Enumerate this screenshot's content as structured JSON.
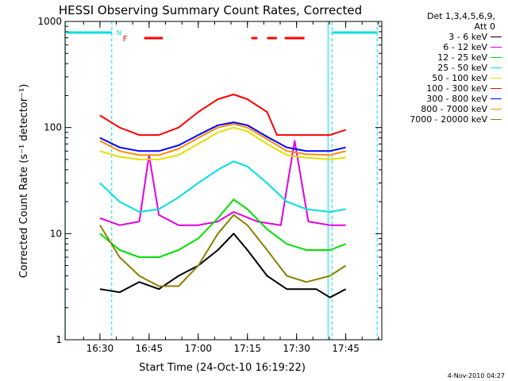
{
  "chart_data": {
    "type": "line",
    "title": "HESSI Observing Summary Count Rates, Corrected",
    "xlabel": "Start Time (24-Oct-10 16:19:22)",
    "ylabel": "Corrected Count Rate (s⁻¹ detector⁻¹)",
    "yscale": "log",
    "ylim": [
      1,
      1000
    ],
    "xlim": [
      "16:19:22",
      "17:56:00"
    ],
    "x_ticks": [
      "16:30",
      "16:45",
      "17:00",
      "17:15",
      "17:30",
      "17:45"
    ],
    "y_ticks": [
      "1",
      "10",
      "100",
      "1000"
    ],
    "legend_header": [
      "Det 1,3,4,5,6,9,",
      "Att 0"
    ],
    "legend_position": "right",
    "series": [
      {
        "name": "3 - 6 keV",
        "color": "#000000",
        "points": [
          [
            16.5,
            3
          ],
          [
            16.6,
            2.8
          ],
          [
            16.7,
            3.5
          ],
          [
            16.8,
            3
          ],
          [
            16.9,
            4
          ],
          [
            17.0,
            5
          ],
          [
            17.1,
            7
          ],
          [
            17.18,
            10
          ],
          [
            17.25,
            7
          ],
          [
            17.35,
            4
          ],
          [
            17.45,
            3
          ],
          [
            17.55,
            3
          ],
          [
            17.6,
            3
          ],
          [
            17.67,
            2.5
          ],
          [
            17.75,
            3
          ]
        ]
      },
      {
        "name": "6 - 12 keV",
        "color": "#e000e0",
        "points": [
          [
            16.5,
            14
          ],
          [
            16.6,
            12
          ],
          [
            16.7,
            13
          ],
          [
            16.75,
            55
          ],
          [
            16.8,
            15
          ],
          [
            16.9,
            12
          ],
          [
            17.0,
            12
          ],
          [
            17.1,
            13
          ],
          [
            17.18,
            16
          ],
          [
            17.3,
            13
          ],
          [
            17.42,
            12
          ],
          [
            17.49,
            75
          ],
          [
            17.56,
            13
          ],
          [
            17.67,
            12
          ],
          [
            17.75,
            12
          ]
        ]
      },
      {
        "name": "12 - 25 keV",
        "color": "#00e000",
        "points": [
          [
            16.5,
            10
          ],
          [
            16.6,
            7
          ],
          [
            16.7,
            6
          ],
          [
            16.8,
            6
          ],
          [
            16.9,
            7
          ],
          [
            17.0,
            9
          ],
          [
            17.1,
            14
          ],
          [
            17.18,
            21
          ],
          [
            17.25,
            17
          ],
          [
            17.35,
            11
          ],
          [
            17.45,
            8
          ],
          [
            17.55,
            7
          ],
          [
            17.67,
            7
          ],
          [
            17.75,
            8
          ]
        ]
      },
      {
        "name": "25 - 50 keV",
        "color": "#00e0e0",
        "points": [
          [
            16.5,
            30
          ],
          [
            16.6,
            20
          ],
          [
            16.7,
            16
          ],
          [
            16.8,
            17
          ],
          [
            16.9,
            22
          ],
          [
            17.0,
            30
          ],
          [
            17.1,
            40
          ],
          [
            17.18,
            48
          ],
          [
            17.25,
            43
          ],
          [
            17.35,
            30
          ],
          [
            17.45,
            20
          ],
          [
            17.55,
            17
          ],
          [
            17.67,
            16
          ],
          [
            17.75,
            17
          ]
        ]
      },
      {
        "name": "50 - 100 keV",
        "color": "#e0e000",
        "points": [
          [
            16.5,
            60
          ],
          [
            16.6,
            53
          ],
          [
            16.7,
            50
          ],
          [
            16.8,
            50
          ],
          [
            16.9,
            55
          ],
          [
            17.0,
            70
          ],
          [
            17.1,
            90
          ],
          [
            17.18,
            100
          ],
          [
            17.25,
            92
          ],
          [
            17.35,
            70
          ],
          [
            17.45,
            55
          ],
          [
            17.55,
            52
          ],
          [
            17.67,
            50
          ],
          [
            17.75,
            52
          ]
        ]
      },
      {
        "name": "100 - 300 keV",
        "color": "#ff0000",
        "points": [
          [
            16.5,
            130
          ],
          [
            16.6,
            100
          ],
          [
            16.7,
            85
          ],
          [
            16.8,
            85
          ],
          [
            16.9,
            100
          ],
          [
            17.0,
            140
          ],
          [
            17.1,
            185
          ],
          [
            17.18,
            205
          ],
          [
            17.25,
            185
          ],
          [
            17.35,
            140
          ],
          [
            17.4,
            85
          ],
          [
            17.5,
            85
          ],
          [
            17.6,
            85
          ],
          [
            17.67,
            85
          ],
          [
            17.75,
            95
          ]
        ]
      },
      {
        "name": "300 - 800 keV",
        "color": "#0000ff",
        "points": [
          [
            16.5,
            80
          ],
          [
            16.6,
            65
          ],
          [
            16.7,
            60
          ],
          [
            16.8,
            60
          ],
          [
            16.9,
            68
          ],
          [
            17.0,
            85
          ],
          [
            17.1,
            105
          ],
          [
            17.18,
            112
          ],
          [
            17.25,
            105
          ],
          [
            17.35,
            82
          ],
          [
            17.45,
            65
          ],
          [
            17.55,
            60
          ],
          [
            17.67,
            60
          ],
          [
            17.75,
            65
          ]
        ]
      },
      {
        "name": "800 - 7000 keV",
        "color": "#ff8c00",
        "points": [
          [
            16.5,
            75
          ],
          [
            16.6,
            60
          ],
          [
            16.7,
            55
          ],
          [
            16.8,
            55
          ],
          [
            16.9,
            63
          ],
          [
            17.0,
            80
          ],
          [
            17.1,
            100
          ],
          [
            17.18,
            108
          ],
          [
            17.25,
            100
          ],
          [
            17.35,
            78
          ],
          [
            17.45,
            60
          ],
          [
            17.55,
            56
          ],
          [
            17.67,
            55
          ],
          [
            17.75,
            60
          ]
        ]
      },
      {
        "name": "7000 - 20000 keV",
        "color": "#8b8000",
        "points": [
          [
            16.5,
            12
          ],
          [
            16.6,
            6
          ],
          [
            16.7,
            4
          ],
          [
            16.8,
            3.2
          ],
          [
            16.9,
            3.2
          ],
          [
            17.0,
            5
          ],
          [
            17.1,
            10
          ],
          [
            17.18,
            15
          ],
          [
            17.25,
            12
          ],
          [
            17.35,
            7
          ],
          [
            17.45,
            4
          ],
          [
            17.55,
            3.5
          ],
          [
            17.67,
            4
          ],
          [
            17.75,
            5
          ]
        ]
      }
    ],
    "flags": {
      "attenuator_color": "#00e0e0",
      "flare_color": "#ff0000",
      "labels": [
        "N",
        "F"
      ],
      "flare_segments": [
        [
          16.725,
          16.82
        ],
        [
          17.27,
          17.3
        ],
        [
          17.35,
          17.4
        ],
        [
          17.44,
          17.54
        ]
      ],
      "saa_segments": [
        [
          16.33,
          16.56
        ],
        [
          17.68,
          17.91
        ]
      ],
      "night_lines": [
        16.56,
        17.68,
        17.91
      ]
    }
  },
  "footer": "4-Nov-2010 04:27"
}
